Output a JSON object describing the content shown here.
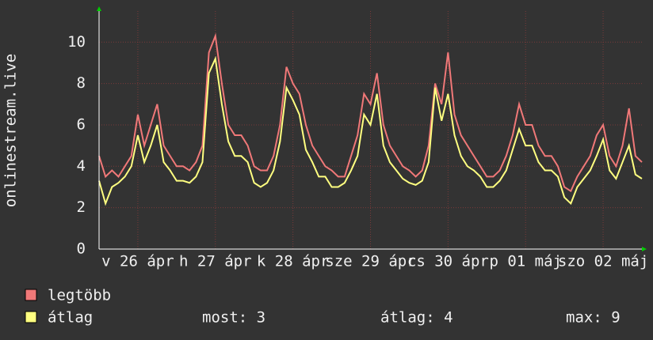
{
  "chart_data": {
    "type": "line",
    "y_label": "onlinestream.live",
    "x": [
      0,
      2,
      4,
      6,
      8,
      10,
      12,
      14,
      16,
      18,
      20,
      22,
      24,
      26,
      28,
      30,
      32,
      34,
      36,
      38,
      40,
      42,
      44,
      46,
      48,
      50,
      52,
      54,
      56,
      58,
      60,
      62,
      64,
      66,
      68,
      70,
      72,
      74,
      76,
      78,
      80,
      82,
      84,
      86,
      88,
      90,
      92,
      94,
      96,
      98,
      100,
      102,
      104,
      106,
      108,
      110,
      112,
      114,
      116,
      118,
      120,
      122,
      124,
      126,
      128,
      130,
      132,
      134,
      136,
      138,
      140,
      142,
      144,
      146,
      148,
      150,
      152,
      154,
      156,
      158,
      160,
      162,
      164,
      166,
      168
    ],
    "xlim": [
      0,
      168
    ],
    "xticks": [
      {
        "value": 12,
        "label": "v 26 ápr"
      },
      {
        "value": 36,
        "label": "h 27 ápr"
      },
      {
        "value": 60,
        "label": "k 28 ápr"
      },
      {
        "value": 84,
        "label": "sze 29 ápr"
      },
      {
        "value": 108,
        "label": "cs 30 ápr"
      },
      {
        "value": 132,
        "label": "p 01 máj"
      },
      {
        "value": 156,
        "label": "szo 02 máj"
      }
    ],
    "ylim": [
      0,
      11.5
    ],
    "yticks": [
      0,
      2,
      4,
      6,
      8,
      10
    ],
    "grid": true,
    "series": [
      {
        "name": "legtöbb",
        "color": "#f07878",
        "values": [
          4.5,
          3.5,
          3.8,
          3.5,
          4,
          4.5,
          6.5,
          5,
          6,
          7,
          5,
          4.5,
          4,
          4,
          3.8,
          4.2,
          5,
          9.5,
          10.3,
          8,
          6,
          5.5,
          5.5,
          5,
          4,
          3.8,
          3.8,
          4.5,
          6,
          8.8,
          8,
          7.5,
          6,
          5,
          4.5,
          4,
          3.8,
          3.5,
          3.5,
          4.5,
          5.5,
          7.5,
          7,
          8.5,
          6,
          5,
          4.5,
          4,
          3.8,
          3.5,
          3.8,
          5,
          8,
          7,
          9.5,
          6.5,
          5.5,
          5,
          4.5,
          4,
          3.5,
          3.5,
          3.8,
          4.5,
          5.5,
          7,
          6,
          6,
          5,
          4.5,
          4.5,
          4,
          3,
          2.8,
          3.5,
          4,
          4.5,
          5.5,
          6,
          4.5,
          4,
          5,
          6.8,
          4.5,
          4.2
        ]
      },
      {
        "name": "átlag",
        "color": "#ffff80",
        "values": [
          3.3,
          2.2,
          3,
          3.2,
          3.5,
          4,
          5.5,
          4.2,
          5,
          6,
          4.2,
          3.8,
          3.3,
          3.3,
          3.2,
          3.5,
          4.2,
          8.5,
          9.2,
          7,
          5.2,
          4.5,
          4.5,
          4.2,
          3.2,
          3,
          3.2,
          3.8,
          5.2,
          7.8,
          7.2,
          6.5,
          4.8,
          4.2,
          3.5,
          3.5,
          3,
          3,
          3.2,
          3.8,
          4.5,
          6.5,
          6,
          7.5,
          5,
          4.2,
          3.8,
          3.4,
          3.2,
          3.1,
          3.3,
          4.2,
          7.8,
          6.2,
          7.5,
          5.5,
          4.5,
          4,
          3.8,
          3.5,
          3,
          3,
          3.3,
          3.8,
          4.8,
          5.8,
          5,
          5,
          4.2,
          3.8,
          3.8,
          3.5,
          2.5,
          2.2,
          3,
          3.4,
          3.8,
          4.5,
          5.3,
          3.8,
          3.4,
          4.2,
          5,
          3.6,
          3.4
        ]
      }
    ],
    "stats": [
      "most: 3",
      "átlag: 4",
      "max: 9"
    ]
  }
}
